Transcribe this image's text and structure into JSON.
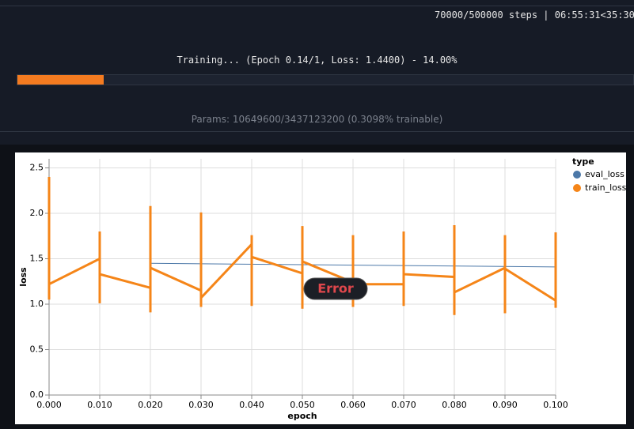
{
  "header": {
    "steps": "70000/500000 steps | 06:55:31<35:30",
    "status": "Training... (Epoch 0.14/1, Loss: 1.4400) - 14.00%",
    "progress": 14,
    "params": "Params: 10649600/3437123200 (0.3098% trainable)"
  },
  "overlay": {
    "error": "Error"
  },
  "chart_data": {
    "type": "line",
    "x_label": "epoch",
    "y_label": "loss",
    "legend_title": "type",
    "legend": "top-right",
    "grid": true,
    "xlim": [
      0,
      0.1
    ],
    "ylim": [
      0,
      2.6
    ],
    "xticks": [
      {
        "value": 0,
        "label": "0.000"
      },
      {
        "value": 0.01,
        "label": "0.010"
      },
      {
        "value": 0.02,
        "label": "0.020"
      },
      {
        "value": 0.03,
        "label": "0.030"
      },
      {
        "value": 0.04,
        "label": "0.040"
      },
      {
        "value": 0.05,
        "label": "0.050"
      },
      {
        "value": 0.06,
        "label": "0.060"
      },
      {
        "value": 0.07,
        "label": "0.070"
      },
      {
        "value": 0.08,
        "label": "0.080"
      },
      {
        "value": 0.09,
        "label": "0.090"
      },
      {
        "value": 0.1,
        "label": "0.100"
      }
    ],
    "yticks": [
      {
        "value": 0,
        "label": "0.0"
      },
      0.5,
      {
        "value": 1,
        "label": "1.0"
      },
      1.5,
      {
        "value": 2,
        "label": "2.0"
      },
      2.5
    ],
    "series": [
      {
        "name": "eval_loss",
        "color": "#4c78a8",
        "x": [
          0.02,
          0.1
        ],
        "values": [
          1.45,
          1.41
        ]
      },
      {
        "name": "train_loss",
        "color": "#f58518",
        "x": [
          0,
          0,
          0,
          0.01,
          0.01,
          0.01,
          0.01,
          0.02,
          0.02,
          0.02,
          0.02,
          0.03,
          0.03,
          0.03,
          0.03,
          0.04,
          0.04,
          0.04,
          0.04,
          0.05,
          0.05,
          0.05,
          0.05,
          0.06,
          0.06,
          0.06,
          0.06,
          0.07,
          0.07,
          0.07,
          0.07,
          0.08,
          0.08,
          0.08,
          0.08,
          0.09,
          0.09,
          0.09,
          0.09,
          0.1,
          0.1,
          0.1
        ],
        "values": [
          2.4,
          1.05,
          1.22,
          1.5,
          1.8,
          1.01,
          1.33,
          1.18,
          2.08,
          0.91,
          1.4,
          1.15,
          2.01,
          0.97,
          1.07,
          1.66,
          1.76,
          0.98,
          1.52,
          1.34,
          1.86,
          0.95,
          1.47,
          1.24,
          1.76,
          0.97,
          1.22,
          1.22,
          1.8,
          0.98,
          1.33,
          1.3,
          1.87,
          0.88,
          1.13,
          1.4,
          1.76,
          0.9,
          1.39,
          1.04,
          1.79,
          0.96
        ]
      }
    ]
  }
}
